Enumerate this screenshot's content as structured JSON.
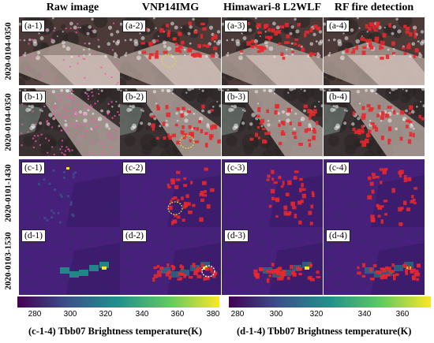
{
  "columns": [
    "Raw image",
    "VNP14IMG",
    "Himawari-8 L2WLF",
    "RF fire detection"
  ],
  "rows": [
    {
      "date": "2020-0104-0350",
      "panels": [
        "(a-1)",
        "(a-2)",
        "(a-3)",
        "(a-4)"
      ]
    },
    {
      "date": "2020-0104-0350",
      "panels": [
        "(b-1)",
        "(b-2)",
        "(b-3)",
        "(b-4)"
      ]
    },
    {
      "date": "2020-0101-1430",
      "panels": [
        "(c-1)",
        "(c-2)",
        "(c-3)",
        "(c-4)"
      ]
    },
    {
      "date": "2020-0103-1530",
      "panels": [
        "(d-1)",
        "(d-2)",
        "(d-3)",
        "(d-4)"
      ]
    }
  ],
  "colorbars": [
    {
      "ticks": [
        "280",
        "300",
        "320",
        "340",
        "360",
        "380"
      ],
      "label": "(c-1-4) Tbb07 Brightness temperature(K)"
    },
    {
      "ticks": [
        "280",
        "300",
        "320",
        "340",
        "360"
      ],
      "label": "(d-1-4) Tbb07 Brightness temperature(K)"
    }
  ],
  "colors": {
    "fire": "#e8282c",
    "viridis": [
      "#440154",
      "#3b528b",
      "#21918c",
      "#5ec962",
      "#fde725"
    ]
  }
}
